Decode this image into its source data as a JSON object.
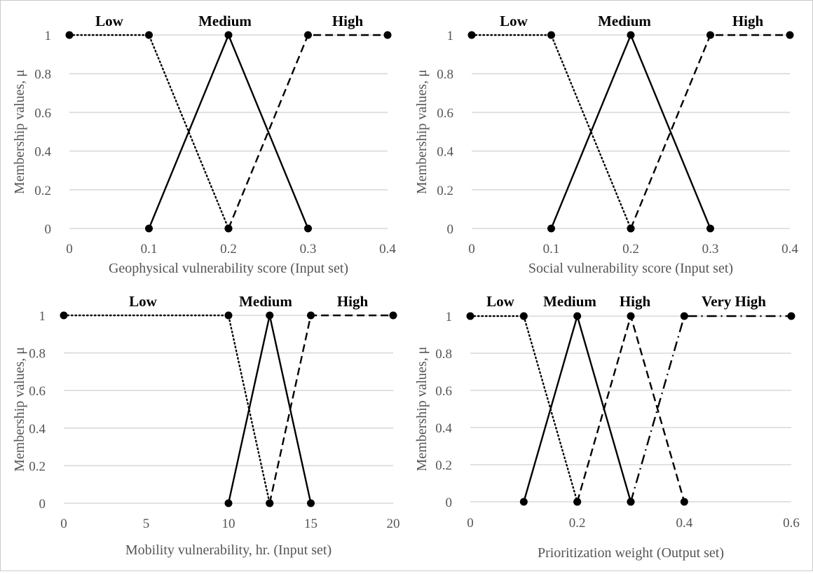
{
  "chart_data": [
    {
      "id": "geophysical",
      "type": "line",
      "xlabel": "Geophysical vulnerability score (Input set)",
      "ylabel": "Membership values, μ",
      "xlim": [
        0,
        0.4
      ],
      "ylim": [
        0,
        1
      ],
      "xticks": [
        "0",
        "0.1",
        "0.2",
        "0.3",
        "0.4"
      ],
      "yticks": [
        "0",
        "0.2",
        "0.4",
        "0.6",
        "0.8",
        "1"
      ],
      "grid": true,
      "series": [
        {
          "name": "Low",
          "dash": "dotted",
          "points": [
            [
              0,
              1
            ],
            [
              0.1,
              1
            ],
            [
              0.2,
              0
            ]
          ]
        },
        {
          "name": "Medium",
          "dash": "solid",
          "points": [
            [
              0.1,
              0
            ],
            [
              0.2,
              1
            ],
            [
              0.3,
              0
            ]
          ]
        },
        {
          "name": "High",
          "dash": "dashed",
          "points": [
            [
              0.2,
              0
            ],
            [
              0.3,
              1
            ],
            [
              0.4,
              1
            ]
          ]
        }
      ]
    },
    {
      "id": "social",
      "type": "line",
      "xlabel": "Social vulnerability score (Input set)",
      "ylabel": "Membership values, μ",
      "xlim": [
        0,
        0.4
      ],
      "ylim": [
        0,
        1
      ],
      "xticks": [
        "0",
        "0.1",
        "0.2",
        "0.3",
        "0.4"
      ],
      "yticks": [
        "0",
        "0.2",
        "0.4",
        "0.6",
        "0.8",
        "1"
      ],
      "grid": true,
      "series": [
        {
          "name": "Low",
          "dash": "dotted",
          "points": [
            [
              0,
              1
            ],
            [
              0.1,
              1
            ],
            [
              0.2,
              0
            ]
          ]
        },
        {
          "name": "Medium",
          "dash": "solid",
          "points": [
            [
              0.1,
              0
            ],
            [
              0.2,
              1
            ],
            [
              0.3,
              0
            ]
          ]
        },
        {
          "name": "High",
          "dash": "dashed",
          "points": [
            [
              0.2,
              0
            ],
            [
              0.3,
              1
            ],
            [
              0.4,
              1
            ]
          ]
        }
      ]
    },
    {
      "id": "mobility",
      "type": "line",
      "xlabel": "Mobility vulnerability, hr. (Input set)",
      "ylabel": "Membership values, μ",
      "xlim": [
        0,
        20
      ],
      "ylim": [
        0,
        1
      ],
      "xticks": [
        "0",
        "5",
        "10",
        "15",
        "20"
      ],
      "yticks": [
        "0",
        "0.2",
        "0.4",
        "0.6",
        "0.8",
        "1"
      ],
      "grid": true,
      "series": [
        {
          "name": "Low",
          "dash": "dotted",
          "points": [
            [
              0,
              1
            ],
            [
              10,
              1
            ],
            [
              12.5,
              0
            ]
          ]
        },
        {
          "name": "Medium",
          "dash": "solid",
          "points": [
            [
              10,
              0
            ],
            [
              12.5,
              1
            ],
            [
              15,
              0
            ]
          ]
        },
        {
          "name": "High",
          "dash": "dashed",
          "points": [
            [
              12.5,
              0
            ],
            [
              15,
              1
            ],
            [
              20,
              1
            ]
          ]
        }
      ]
    },
    {
      "id": "prioritization",
      "type": "line",
      "xlabel": "Prioritization weight (Output set)",
      "ylabel": "Membership values, μ",
      "xlim": [
        0,
        0.6
      ],
      "ylim": [
        0,
        1
      ],
      "xticks": [
        "0",
        "0.2",
        "0.4",
        "0.6"
      ],
      "yticks": [
        "0",
        "0.2",
        "0.4",
        "0.6",
        "0.8",
        "1"
      ],
      "grid": true,
      "series": [
        {
          "name": "Low",
          "dash": "dotted",
          "points": [
            [
              0,
              1
            ],
            [
              0.1,
              1
            ],
            [
              0.2,
              0
            ]
          ]
        },
        {
          "name": "Medium",
          "dash": "solid",
          "points": [
            [
              0.1,
              0
            ],
            [
              0.2,
              1
            ],
            [
              0.3,
              0
            ]
          ]
        },
        {
          "name": "High",
          "dash": "dashed",
          "points": [
            [
              0.2,
              0
            ],
            [
              0.3,
              1
            ],
            [
              0.4,
              0
            ]
          ]
        },
        {
          "name": "Very High",
          "dash": "dashdot",
          "points": [
            [
              0.3,
              0
            ],
            [
              0.4,
              1
            ],
            [
              0.6,
              1
            ]
          ]
        }
      ]
    }
  ]
}
